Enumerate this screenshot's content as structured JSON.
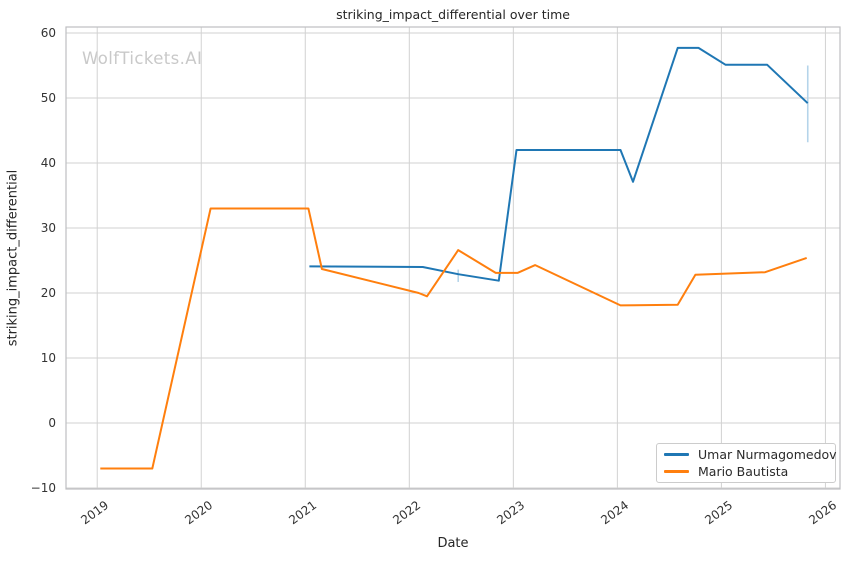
{
  "watermark": "WolfTickets.AI",
  "colors": {
    "grid": "#d2d2d2",
    "spine": "#bdbfc1",
    "error_bar": "#b5d4ea",
    "watermark": "#c9c9c9",
    "background": "#ffffff"
  },
  "chart_data": {
    "type": "line",
    "title": "striking_impact_differential over time",
    "xlabel": "Date",
    "ylabel": "striking_impact_differential",
    "grid": true,
    "legend_position": "lower right",
    "xlim": [
      2018.7,
      2026.14
    ],
    "ylim": [
      -10.15,
      60.92
    ],
    "xticks": [
      2019,
      2020,
      2021,
      2022,
      2023,
      2024,
      2025,
      2026
    ],
    "yticks": [
      -10,
      0,
      10,
      20,
      30,
      40,
      50,
      60
    ],
    "ytick_labels": [
      "−10",
      "0",
      "10",
      "20",
      "30",
      "40",
      "50",
      "60"
    ],
    "series": [
      {
        "name": "Umar Nurmagomedov",
        "color": "#1f77b4",
        "x": [
          2021.04,
          2022.13,
          2022.47,
          2022.86,
          2023.03,
          2024.03,
          2024.15,
          2024.58,
          2024.78,
          2025.04,
          2025.44,
          2025.83
        ],
        "y": [
          24.1,
          24.0,
          22.9,
          21.9,
          42.0,
          42.0,
          37.1,
          57.7,
          57.7,
          55.1,
          55.1,
          49.2
        ],
        "error_bars": [
          {
            "x": 2022.47,
            "low": 21.7,
            "high": 23.6
          },
          {
            "x": 2025.83,
            "low": 43.2,
            "high": 55.0
          }
        ]
      },
      {
        "name": "Mario Bautista",
        "color": "#ff7f0e",
        "x": [
          2019.03,
          2019.53,
          2020.09,
          2021.03,
          2021.16,
          2022.09,
          2022.17,
          2022.47,
          2022.83,
          2023.04,
          2023.21,
          2024.03,
          2024.58,
          2024.75,
          2025.42,
          2025.82
        ],
        "y": [
          -7.0,
          -7.0,
          33.0,
          33.0,
          23.7,
          20.0,
          19.5,
          26.6,
          23.1,
          23.1,
          24.3,
          18.1,
          18.2,
          22.8,
          23.2,
          25.4
        ],
        "error_bars": []
      }
    ]
  }
}
